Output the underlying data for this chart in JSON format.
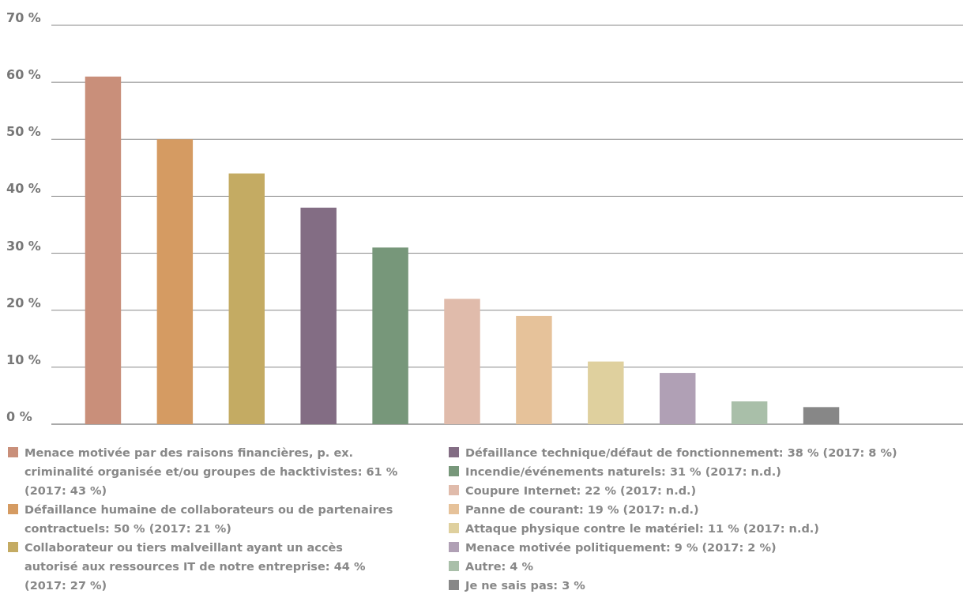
{
  "chart_data": {
    "type": "bar",
    "categories": [
      null,
      null,
      null,
      null,
      null,
      null,
      null,
      null,
      null,
      null,
      null
    ],
    "stacked": true,
    "ylim": [
      0,
      70
    ],
    "yticks": [
      {
        "value": 0,
        "label": "0 %"
      },
      {
        "value": 10,
        "label": "10 %"
      },
      {
        "value": 20,
        "label": "20 %"
      },
      {
        "value": 30,
        "label": "30 %"
      },
      {
        "value": 40,
        "label": "40 %"
      },
      {
        "value": 50,
        "label": "50 %"
      },
      {
        "value": 60,
        "label": "60 %"
      },
      {
        "value": 70,
        "label": "70 %"
      }
    ],
    "grid": "y",
    "legend": "bottom",
    "tick_labels": "y",
    "series": [
      {
        "name": "Menace motivée par des raisons financières, p. ex. criminalité organisée et/ou groupes de hacktivistes: 61 % (2017: 43 %)",
        "color": "#c98f7a",
        "values": [
          61,
          null,
          null,
          null,
          null,
          null,
          null,
          null,
          null,
          null,
          null
        ]
      },
      {
        "name": "Défaillance humaine de collaborateurs ou de partenaires contractuels: 50 % (2017: 21 %)",
        "color": "#d59b62",
        "values": [
          null,
          50,
          null,
          null,
          null,
          null,
          null,
          null,
          null,
          null,
          null
        ]
      },
      {
        "name": "Collaborateur ou tiers malveillant ayant un accès autorisé aux ressources IT de notre entreprise: 44 % (2017: 27 %)",
        "color": "#c4ab63",
        "values": [
          null,
          null,
          44,
          null,
          null,
          null,
          null,
          null,
          null,
          null,
          null
        ]
      },
      {
        "name": "Défaillance technique/défaut de fonctionnement: 38 % (2017: 8 %)",
        "color": "#836d84",
        "values": [
          null,
          null,
          null,
          38,
          null,
          null,
          null,
          null,
          null,
          null,
          null
        ]
      },
      {
        "name": "Incendie/événements naturels: 31 % (2017: n.d.)",
        "color": "#77977a",
        "values": [
          null,
          null,
          null,
          null,
          31,
          null,
          null,
          null,
          null,
          null,
          null
        ]
      },
      {
        "name": "Coupure Internet: 22 % (2017: n.d.)",
        "color": "#e0bbab",
        "values": [
          null,
          null,
          null,
          null,
          null,
          22,
          null,
          null,
          null,
          null,
          null
        ]
      },
      {
        "name": "Panne de courant: 19 % (2017: n.d.)",
        "color": "#e6c29a",
        "values": [
          null,
          null,
          null,
          null,
          null,
          null,
          19,
          null,
          null,
          null,
          null
        ]
      },
      {
        "name": "Attaque physique contre le matériel: 11 % (2017: n.d.)",
        "color": "#dfd09e",
        "values": [
          null,
          null,
          null,
          null,
          null,
          null,
          null,
          11,
          null,
          null,
          null
        ]
      },
      {
        "name": "Menace motivée politiquement: 9 % (2017: 2 %)",
        "color": "#b0a0b5",
        "values": [
          null,
          null,
          null,
          null,
          null,
          null,
          null,
          null,
          9,
          null,
          null
        ]
      },
      {
        "name": "Autre: 4 %",
        "color": "#a9bfa9",
        "values": [
          null,
          null,
          null,
          null,
          null,
          null,
          null,
          null,
          null,
          4,
          null
        ]
      },
      {
        "name": "Je ne sais pas: 3 %",
        "color": "#878787",
        "values": [
          null,
          null,
          null,
          null,
          null,
          null,
          null,
          null,
          null,
          null,
          3
        ]
      }
    ]
  }
}
